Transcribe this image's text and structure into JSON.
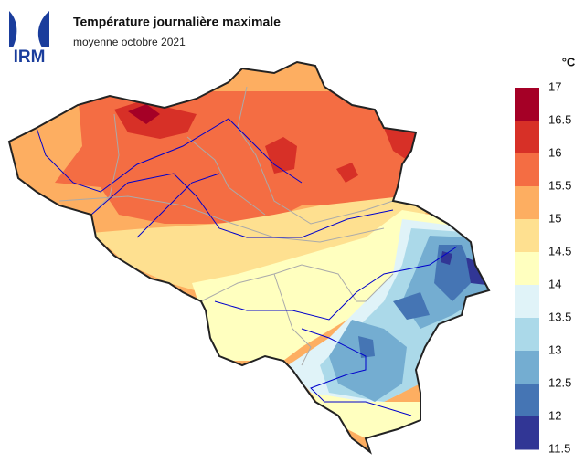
{
  "header": {
    "logo": "IRM",
    "title": "Température journalière maximale",
    "subtitle": "moyenne octobre 2021"
  },
  "legend": {
    "unit": "°C",
    "ticks": [
      17,
      16.5,
      16,
      15.5,
      15,
      14.5,
      14,
      13.5,
      13,
      12.5,
      12,
      11.5
    ],
    "colors": [
      "#a50026",
      "#d73027",
      "#f46d43",
      "#fdae61",
      "#fee090",
      "#ffffbf",
      "#e0f3f8",
      "#abd9e9",
      "#74add1",
      "#4575b4",
      "#313695"
    ]
  }
}
